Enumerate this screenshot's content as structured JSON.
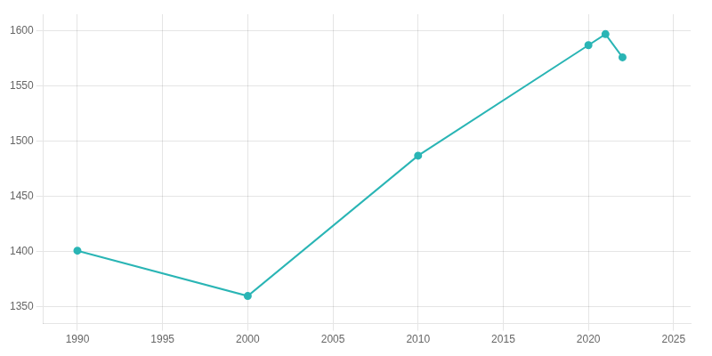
{
  "chart_data": {
    "type": "line",
    "x": [
      1990,
      2000,
      2010,
      2020,
      2021,
      2022
    ],
    "values": [
      1401,
      1360,
      1487,
      1587,
      1597,
      1576
    ],
    "color": "#2ab5b5",
    "marker": "circle",
    "xlim": [
      1988,
      2026
    ],
    "ylim": [
      1335,
      1615
    ],
    "xticks": [
      1990,
      1995,
      2000,
      2005,
      2010,
      2015,
      2020,
      2025
    ],
    "yticks": [
      1350,
      1400,
      1450,
      1500,
      1550,
      1600
    ],
    "grid": true
  }
}
